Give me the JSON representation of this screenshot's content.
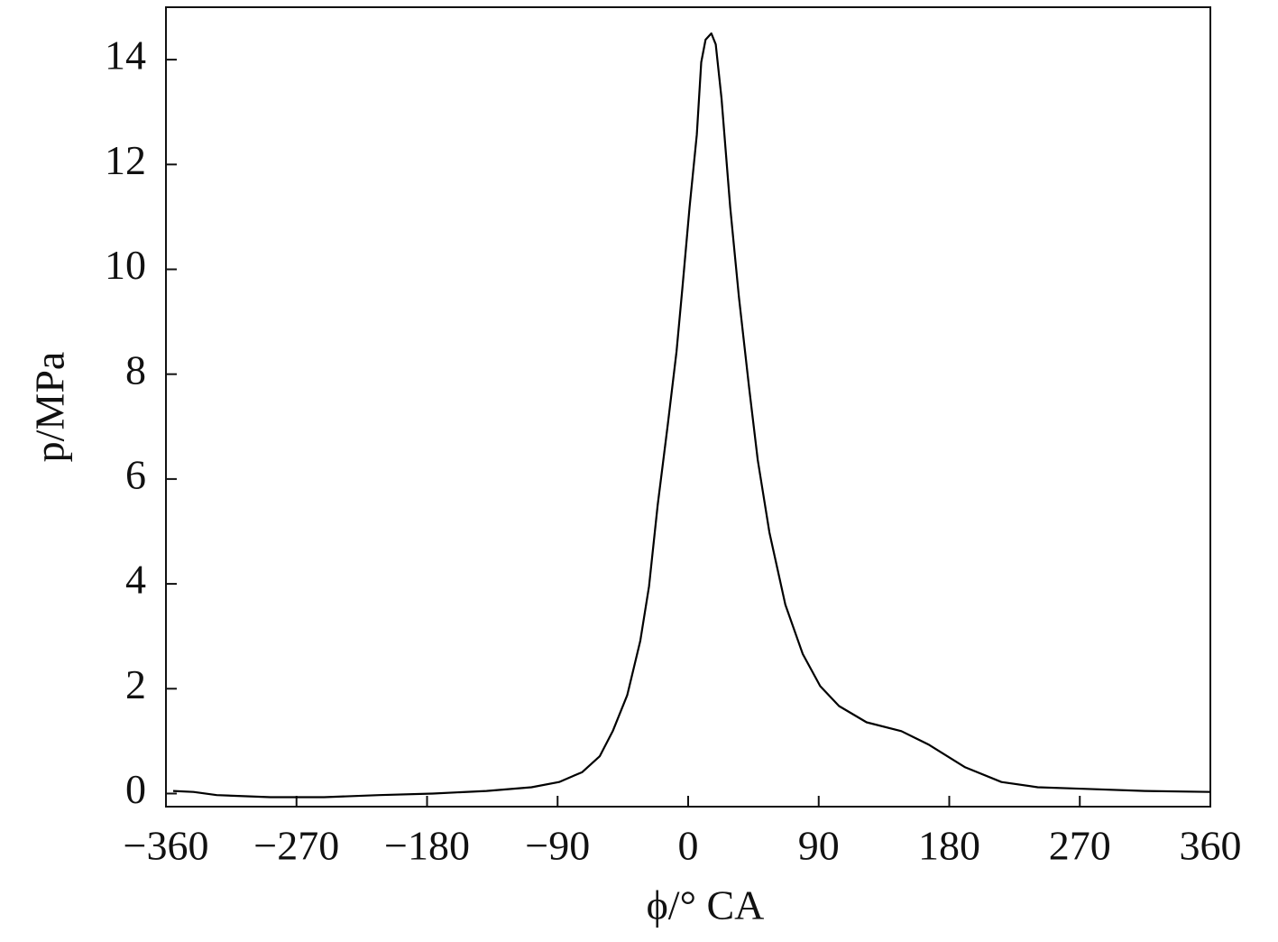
{
  "chart_data": {
    "type": "line",
    "xlabel": "ϕ/° CA",
    "ylabel": "p/MPa",
    "xlim": [
      -360,
      360
    ],
    "ylim": [
      -0.25,
      15
    ],
    "xticks": [
      {
        "value": -360,
        "label": "−360"
      },
      {
        "value": -270,
        "label": "−270"
      },
      {
        "value": -180,
        "label": "−180"
      },
      {
        "value": -90,
        "label": "−90"
      },
      0,
      90,
      180,
      270,
      360
    ],
    "yticks": [
      0,
      2,
      4,
      6,
      8,
      10,
      12,
      14
    ],
    "grid": false,
    "series": [
      {
        "name": "p",
        "color": "#000000",
        "x": [
          -355,
          -341,
          -325,
          -288,
          -251,
          -213,
          -176,
          -139,
          -108,
          -89,
          -73,
          -61,
          -52,
          -42,
          -33,
          -27,
          -21,
          -14,
          -8,
          -4,
          1,
          6,
          9,
          12,
          16,
          19,
          23,
          29,
          35,
          42,
          48,
          56,
          67,
          79,
          91,
          104,
          123,
          147,
          166,
          191,
          216,
          241,
          272,
          315,
          360
        ],
        "values": [
          0.05,
          0.03,
          -0.03,
          -0.07,
          -0.07,
          -0.03,
          0,
          0.05,
          0.12,
          0.22,
          0.41,
          0.71,
          1.19,
          1.88,
          2.91,
          3.95,
          5.5,
          7.05,
          8.43,
          9.64,
          11.19,
          12.57,
          13.95,
          14.38,
          14.5,
          14.29,
          13.26,
          11.19,
          9.47,
          7.74,
          6.36,
          4.98,
          3.6,
          2.66,
          2.05,
          1.67,
          1.36,
          1.19,
          0.93,
          0.5,
          0.22,
          0.12,
          0.09,
          0.05,
          0.03
        ]
      }
    ]
  }
}
